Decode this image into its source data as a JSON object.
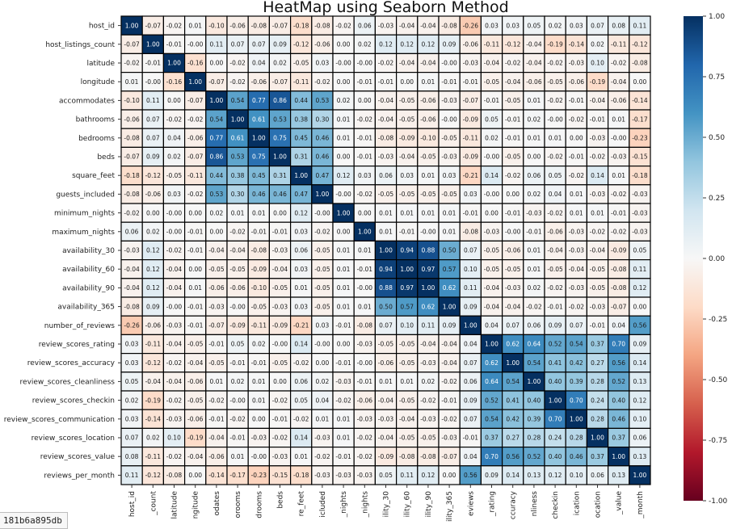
{
  "chart_data": {
    "type": "heatmap",
    "title": "HeatMap using Seaborn Method",
    "row_labels": [
      "host_id",
      "host_listings_count",
      "latitude",
      "longitude",
      "accommodates",
      "bathrooms",
      "bedrooms",
      "beds",
      "square_feet",
      "guests_included",
      "minimum_nights",
      "maximum_nights",
      "availability_30",
      "availability_60",
      "availability_90",
      "availability_365",
      "number_of_reviews",
      "review_scores_rating",
      "review_scores_accuracy",
      "review_scores_cleanliness",
      "review_scores_checkin",
      "review_scores_communication",
      "review_scores_location",
      "review_scores_value",
      "reviews_per_month"
    ],
    "col_labels": [
      "host_id",
      "_count",
      "latitude",
      "ngitude",
      "odates",
      "orooms",
      "drooms",
      "beds",
      "re_feet",
      "icluded",
      "_nights",
      "_nights",
      "ility_30",
      "ility_60",
      "ility_90",
      "ility_365",
      "eviews",
      "_rating",
      "ccuracy",
      "nliness",
      "checkin",
      "ication",
      "ocation",
      "_value",
      "_month"
    ],
    "values": [
      [
        "1.00",
        "-0.07",
        "-0.02",
        "0.01",
        "-0.10",
        "-0.06",
        "-0.08",
        "-0.07",
        "-0.18",
        "-0.08",
        "-0.02",
        "0.06",
        "-0.03",
        "-0.04",
        "-0.04",
        "-0.08",
        "-0.26",
        "0.03",
        "0.03",
        "0.05",
        "0.02",
        "0.03",
        "0.07",
        "0.08",
        "0.11"
      ],
      [
        "-0.07",
        "1.00",
        "-0.01",
        "-0.00",
        "0.11",
        "0.07",
        "0.07",
        "0.09",
        "-0.12",
        "-0.06",
        "0.00",
        "0.02",
        "0.12",
        "0.12",
        "0.12",
        "0.09",
        "-0.06",
        "-0.11",
        "-0.12",
        "-0.04",
        "-0.19",
        "-0.14",
        "0.02",
        "-0.11",
        "-0.12"
      ],
      [
        "-0.02",
        "-0.01",
        "1.00",
        "-0.16",
        "0.00",
        "-0.02",
        "0.04",
        "0.02",
        "-0.05",
        "0.03",
        "-0.00",
        "-0.00",
        "-0.02",
        "-0.04",
        "-0.04",
        "-0.00",
        "-0.03",
        "-0.04",
        "-0.02",
        "-0.04",
        "-0.02",
        "-0.03",
        "0.10",
        "-0.02",
        "-0.08"
      ],
      [
        "0.01",
        "-0.00",
        "-0.16",
        "1.00",
        "-0.07",
        "-0.02",
        "-0.06",
        "-0.07",
        "-0.11",
        "-0.02",
        "0.00",
        "-0.01",
        "-0.01",
        "0.00",
        "0.01",
        "-0.01",
        "-0.01",
        "-0.05",
        "-0.04",
        "-0.06",
        "-0.05",
        "-0.06",
        "-0.19",
        "-0.04",
        "0.00"
      ],
      [
        "-0.10",
        "0.11",
        "0.00",
        "-0.07",
        "1.00",
        "0.54",
        "0.77",
        "0.86",
        "0.44",
        "0.53",
        "0.02",
        "0.00",
        "-0.04",
        "-0.05",
        "-0.06",
        "-0.03",
        "-0.07",
        "-0.01",
        "-0.05",
        "0.01",
        "-0.02",
        "-0.01",
        "-0.04",
        "-0.06",
        "-0.14"
      ],
      [
        "-0.06",
        "0.07",
        "-0.02",
        "-0.02",
        "0.54",
        "1.00",
        "0.61",
        "0.53",
        "0.38",
        "0.30",
        "0.01",
        "-0.02",
        "-0.04",
        "-0.05",
        "-0.06",
        "-0.00",
        "-0.09",
        "0.05",
        "-0.01",
        "0.02",
        "-0.00",
        "-0.02",
        "-0.01",
        "0.01",
        "-0.17"
      ],
      [
        "-0.08",
        "0.07",
        "0.04",
        "-0.06",
        "0.77",
        "0.61",
        "1.00",
        "0.75",
        "0.45",
        "0.46",
        "0.01",
        "-0.01",
        "-0.08",
        "-0.09",
        "-0.10",
        "-0.05",
        "-0.11",
        "0.02",
        "-0.01",
        "0.01",
        "0.01",
        "0.00",
        "-0.03",
        "-0.00",
        "-0.23"
      ],
      [
        "-0.07",
        "0.09",
        "0.02",
        "-0.07",
        "0.86",
        "0.53",
        "0.75",
        "1.00",
        "0.31",
        "0.46",
        "0.00",
        "-0.01",
        "-0.03",
        "-0.04",
        "-0.05",
        "-0.03",
        "-0.09",
        "-0.00",
        "-0.05",
        "0.00",
        "-0.02",
        "-0.01",
        "-0.02",
        "-0.03",
        "-0.15"
      ],
      [
        "-0.18",
        "-0.12",
        "-0.05",
        "-0.11",
        "0.44",
        "0.38",
        "0.45",
        "0.31",
        "1.00",
        "0.47",
        "0.12",
        "0.03",
        "0.06",
        "0.03",
        "0.01",
        "0.03",
        "-0.21",
        "0.14",
        "-0.02",
        "0.06",
        "0.05",
        "-0.02",
        "0.14",
        "0.01",
        "-0.18"
      ],
      [
        "-0.08",
        "-0.06",
        "0.03",
        "-0.02",
        "0.53",
        "0.30",
        "0.46",
        "0.46",
        "0.47",
        "1.00",
        "-0.00",
        "-0.02",
        "-0.05",
        "-0.05",
        "-0.05",
        "-0.05",
        "0.03",
        "-0.00",
        "0.00",
        "0.02",
        "0.04",
        "0.01",
        "-0.03",
        "-0.02",
        "-0.03"
      ],
      [
        "-0.02",
        "0.00",
        "-0.00",
        "0.00",
        "0.02",
        "0.01",
        "0.01",
        "0.00",
        "0.12",
        "-0.00",
        "1.00",
        "0.00",
        "0.01",
        "0.01",
        "0.01",
        "0.01",
        "-0.01",
        "0.00",
        "-0.01",
        "-0.03",
        "-0.02",
        "0.01",
        "0.01",
        "-0.01",
        "-0.03"
      ],
      [
        "0.06",
        "0.02",
        "-0.00",
        "-0.01",
        "0.00",
        "-0.02",
        "-0.01",
        "-0.01",
        "0.03",
        "-0.02",
        "0.00",
        "1.00",
        "0.01",
        "-0.01",
        "-0.00",
        "0.01",
        "-0.08",
        "-0.03",
        "-0.00",
        "-0.01",
        "-0.06",
        "-0.03",
        "-0.02",
        "-0.02",
        "-0.03"
      ],
      [
        "-0.03",
        "0.12",
        "-0.02",
        "-0.01",
        "-0.04",
        "-0.04",
        "-0.08",
        "-0.03",
        "0.06",
        "-0.05",
        "0.01",
        "0.01",
        "1.00",
        "0.94",
        "0.88",
        "0.50",
        "0.07",
        "-0.05",
        "-0.06",
        "0.01",
        "-0.04",
        "-0.03",
        "-0.04",
        "-0.09",
        "0.05"
      ],
      [
        "-0.04",
        "0.12",
        "-0.04",
        "0.00",
        "-0.05",
        "-0.05",
        "-0.09",
        "-0.04",
        "0.03",
        "-0.05",
        "0.01",
        "-0.01",
        "0.94",
        "1.00",
        "0.97",
        "0.57",
        "0.10",
        "-0.05",
        "-0.05",
        "0.01",
        "-0.05",
        "-0.04",
        "-0.05",
        "-0.08",
        "0.11"
      ],
      [
        "-0.04",
        "0.12",
        "-0.04",
        "0.01",
        "-0.06",
        "-0.06",
        "-0.10",
        "-0.05",
        "0.01",
        "-0.05",
        "0.01",
        "-0.00",
        "0.88",
        "0.97",
        "1.00",
        "0.62",
        "0.11",
        "-0.04",
        "-0.03",
        "0.02",
        "-0.02",
        "-0.03",
        "-0.05",
        "-0.08",
        "0.12"
      ],
      [
        "-0.08",
        "0.09",
        "-0.00",
        "-0.01",
        "-0.03",
        "-0.00",
        "-0.05",
        "-0.03",
        "0.03",
        "-0.05",
        "0.01",
        "0.01",
        "0.50",
        "0.57",
        "0.62",
        "1.00",
        "0.09",
        "-0.04",
        "-0.04",
        "-0.02",
        "-0.01",
        "-0.02",
        "-0.03",
        "-0.07",
        "0.00"
      ],
      [
        "-0.26",
        "-0.06",
        "-0.03",
        "-0.01",
        "-0.07",
        "-0.09",
        "-0.11",
        "-0.09",
        "-0.21",
        "0.03",
        "-0.01",
        "-0.08",
        "0.07",
        "0.10",
        "0.11",
        "0.09",
        "1.00",
        "0.04",
        "0.07",
        "0.06",
        "0.09",
        "0.07",
        "-0.01",
        "0.04",
        "0.56"
      ],
      [
        "0.03",
        "-0.11",
        "-0.04",
        "-0.05",
        "-0.01",
        "0.05",
        "0.02",
        "-0.00",
        "0.14",
        "-0.00",
        "0.00",
        "-0.03",
        "-0.05",
        "-0.05",
        "-0.04",
        "-0.04",
        "0.04",
        "1.00",
        "0.62",
        "0.64",
        "0.52",
        "0.54",
        "0.37",
        "0.70",
        "0.09"
      ],
      [
        "0.03",
        "-0.12",
        "-0.02",
        "-0.04",
        "-0.05",
        "-0.01",
        "-0.01",
        "-0.05",
        "-0.02",
        "0.00",
        "-0.01",
        "-0.00",
        "-0.06",
        "-0.05",
        "-0.03",
        "-0.04",
        "0.07",
        "0.62",
        "1.00",
        "0.54",
        "0.41",
        "0.42",
        "0.27",
        "0.56",
        "0.14"
      ],
      [
        "0.05",
        "-0.04",
        "-0.04",
        "-0.06",
        "0.01",
        "0.02",
        "0.01",
        "0.00",
        "0.06",
        "0.02",
        "-0.03",
        "-0.01",
        "0.01",
        "0.01",
        "0.02",
        "-0.02",
        "0.06",
        "0.64",
        "0.54",
        "1.00",
        "0.40",
        "0.39",
        "0.28",
        "0.52",
        "0.13"
      ],
      [
        "0.02",
        "-0.19",
        "-0.02",
        "-0.05",
        "-0.02",
        "-0.00",
        "0.01",
        "-0.02",
        "0.05",
        "0.04",
        "-0.02",
        "-0.06",
        "-0.04",
        "-0.05",
        "-0.02",
        "-0.01",
        "0.09",
        "0.52",
        "0.41",
        "0.40",
        "1.00",
        "0.70",
        "0.24",
        "0.40",
        "0.12"
      ],
      [
        "0.03",
        "-0.14",
        "-0.03",
        "-0.06",
        "-0.01",
        "-0.02",
        "0.00",
        "-0.01",
        "-0.02",
        "0.01",
        "0.01",
        "-0.03",
        "-0.03",
        "-0.04",
        "-0.03",
        "-0.02",
        "0.07",
        "0.54",
        "0.42",
        "0.39",
        "0.70",
        "1.00",
        "0.28",
        "0.46",
        "0.10"
      ],
      [
        "0.07",
        "0.02",
        "0.10",
        "-0.19",
        "-0.04",
        "-0.01",
        "-0.03",
        "-0.02",
        "0.14",
        "-0.03",
        "0.01",
        "-0.02",
        "-0.04",
        "-0.05",
        "-0.05",
        "-0.03",
        "-0.01",
        "0.37",
        "0.27",
        "0.28",
        "0.24",
        "0.28",
        "1.00",
        "0.37",
        "0.06"
      ],
      [
        "0.08",
        "-0.11",
        "-0.02",
        "-0.04",
        "-0.06",
        "0.01",
        "-0.00",
        "-0.03",
        "0.01",
        "-0.02",
        "-0.01",
        "-0.02",
        "-0.09",
        "-0.08",
        "-0.08",
        "-0.07",
        "0.04",
        "0.70",
        "0.56",
        "0.52",
        "0.40",
        "0.46",
        "0.37",
        "1.00",
        "0.13"
      ],
      [
        "0.11",
        "-0.12",
        "-0.08",
        "0.00",
        "-0.14",
        "-0.17",
        "-0.23",
        "-0.15",
        "-0.18",
        "-0.03",
        "-0.03",
        "-0.03",
        "0.05",
        "0.11",
        "0.12",
        "0.00",
        "0.56",
        "0.09",
        "0.14",
        "0.13",
        "0.12",
        "0.10",
        "0.06",
        "0.13",
        "1.00"
      ]
    ],
    "colorbar": {
      "min": -1.0,
      "max": 1.0,
      "ticks": [
        "1.00",
        "0.75",
        "0.50",
        "0.25",
        "0.00",
        "-0.25",
        "-0.50",
        "-0.75",
        "-1.00"
      ]
    },
    "colormap": [
      "#67001f",
      "#b2182b",
      "#d6604d",
      "#f4a582",
      "#fddbc7",
      "#f7f7f7",
      "#d1e5f0",
      "#92c5de",
      "#4393c3",
      "#2166ac",
      "#053061"
    ],
    "grid": true,
    "linecolor": "#000000"
  },
  "tab_label": "181b6a895db"
}
